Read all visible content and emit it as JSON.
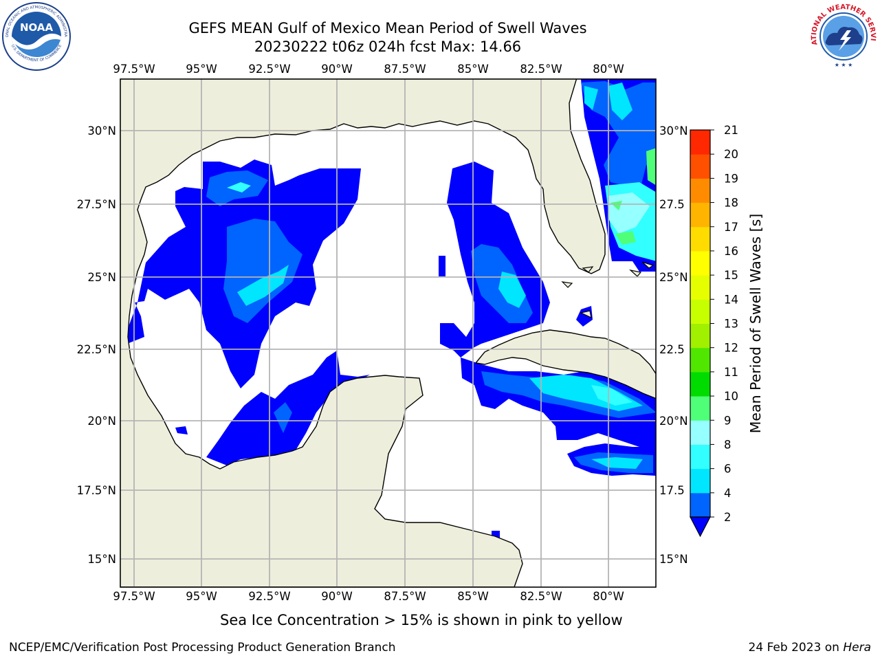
{
  "title": {
    "line1": "GEFS MEAN Gulf of Mexico Mean Period of Swell Waves",
    "line2": "20230222 t06z 024h fcst   Max: 14.66"
  },
  "logos": {
    "left": {
      "name": "NOAA",
      "ring_text": "NATIONAL OCEANIC AND ATMOSPHERIC ADMINISTRATION",
      "ring_text_bottom": "U.S. DEPARTMENT OF COMMERCE"
    },
    "right": {
      "name": "NATIONAL WEATHER SERVICE"
    }
  },
  "map": {
    "lon_ticks": [
      "97.5°W",
      "95°W",
      "92.5°W",
      "90°W",
      "87.5°W",
      "85°W",
      "82.5°W",
      "80°W"
    ],
    "lat_ticks_left": [
      "30°N",
      "27.5°N",
      "25°N",
      "22.5°N",
      "20°N",
      "17.5°N",
      "15°N"
    ],
    "lat_ticks_right": [
      "30°N",
      "27.5",
      "25°N",
      "22.5",
      "20°N",
      "17.5",
      "15°N"
    ],
    "land_color": "#eeeedc",
    "ocean_color": "#ffffff",
    "grid_color": "#b4b4b4"
  },
  "colorbar": {
    "label": "Mean Period of Swell Waves [s]",
    "ticks": [
      "2",
      "4",
      "6",
      "8",
      "9",
      "10",
      "11",
      "12",
      "13",
      "14",
      "15",
      "16",
      "17",
      "18",
      "19",
      "20",
      "21"
    ],
    "colors": [
      "#0064ff",
      "#00e6ff",
      "#32ffff",
      "#96ffff",
      "#50ff78",
      "#00dc00",
      "#50e600",
      "#a0f000",
      "#c8ff00",
      "#e6ff00",
      "#ffff00",
      "#ffdc00",
      "#ffb400",
      "#ff8c00",
      "#ff5000",
      "#ff2800"
    ],
    "under_color": "#0000ff"
  },
  "caption": "Sea Ice Concentration > 15% is shown in pink to yellow",
  "footer": {
    "left": "NCEP/EMC/Verification Post Processing Product Generation Branch",
    "right_prefix": "24 Feb 2023 on ",
    "right_host": "Hera"
  }
}
